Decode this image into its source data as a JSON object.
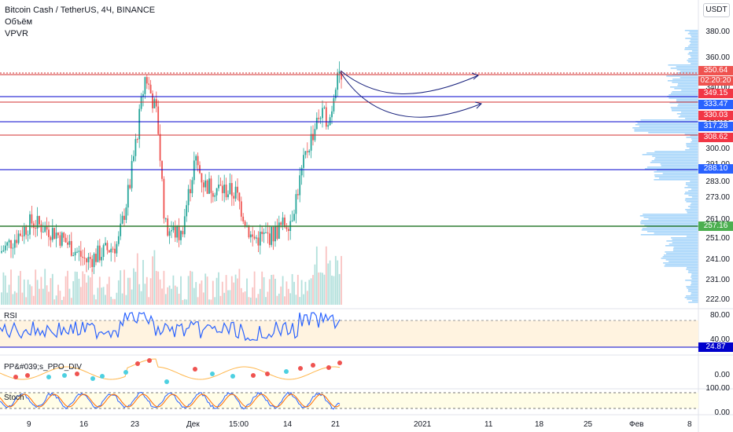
{
  "legend": {
    "title": "Bitcoin Cash / TetherUS, 4Ч, BINANCE",
    "volume": "Объём",
    "vpvr": "VPVR"
  },
  "currency": "USDT",
  "price_axis": [
    "380.00",
    "360.00",
    "340.00",
    "320.00",
    "300.00",
    "291.00",
    "283.00",
    "273.00",
    "261.00",
    "251.00",
    "241.00",
    "231.00",
    "222.00"
  ],
  "price_badges": [
    {
      "label": "350.64",
      "color": "#ef5350"
    },
    {
      "label": "02:20:20",
      "color": "#ef5350"
    },
    {
      "label": "349.15",
      "color": "#f23645"
    },
    {
      "label": "333.47",
      "color": "#2962ff"
    },
    {
      "label": "330.03",
      "color": "#f23645"
    },
    {
      "label": "317.28",
      "color": "#2962ff"
    },
    {
      "label": "308.62",
      "color": "#f23645"
    },
    {
      "label": "288.10",
      "color": "#2962ff"
    },
    {
      "label": "257.16",
      "color": "#4caf50"
    }
  ],
  "rsi": {
    "title": "RSI",
    "axis": [
      "80.00",
      "40.00"
    ],
    "badge": "24.87",
    "badge_color": "#0000cc"
  },
  "ppo": {
    "title": "PP&#039;s_PPO_DIV",
    "axis": [
      "0.00"
    ]
  },
  "stoch": {
    "title": "Stoch",
    "axis": [
      "100.00",
      "0.00"
    ]
  },
  "time_axis": [
    "9",
    "16",
    "23",
    "Дек",
    "15:00",
    "14",
    "21",
    "2021",
    "11",
    "18",
    "25",
    "Фев",
    "8"
  ],
  "colors": {
    "up": "#26a69a",
    "down": "#ef5350",
    "blue_line": "#0000cc",
    "red_line": "#d32f2f",
    "green_line": "#2e7d32",
    "rsi_line": "#2962ff",
    "band": "#fff3e0",
    "stoch_band": "#fffde7",
    "vpvr": "#90caf9"
  }
}
